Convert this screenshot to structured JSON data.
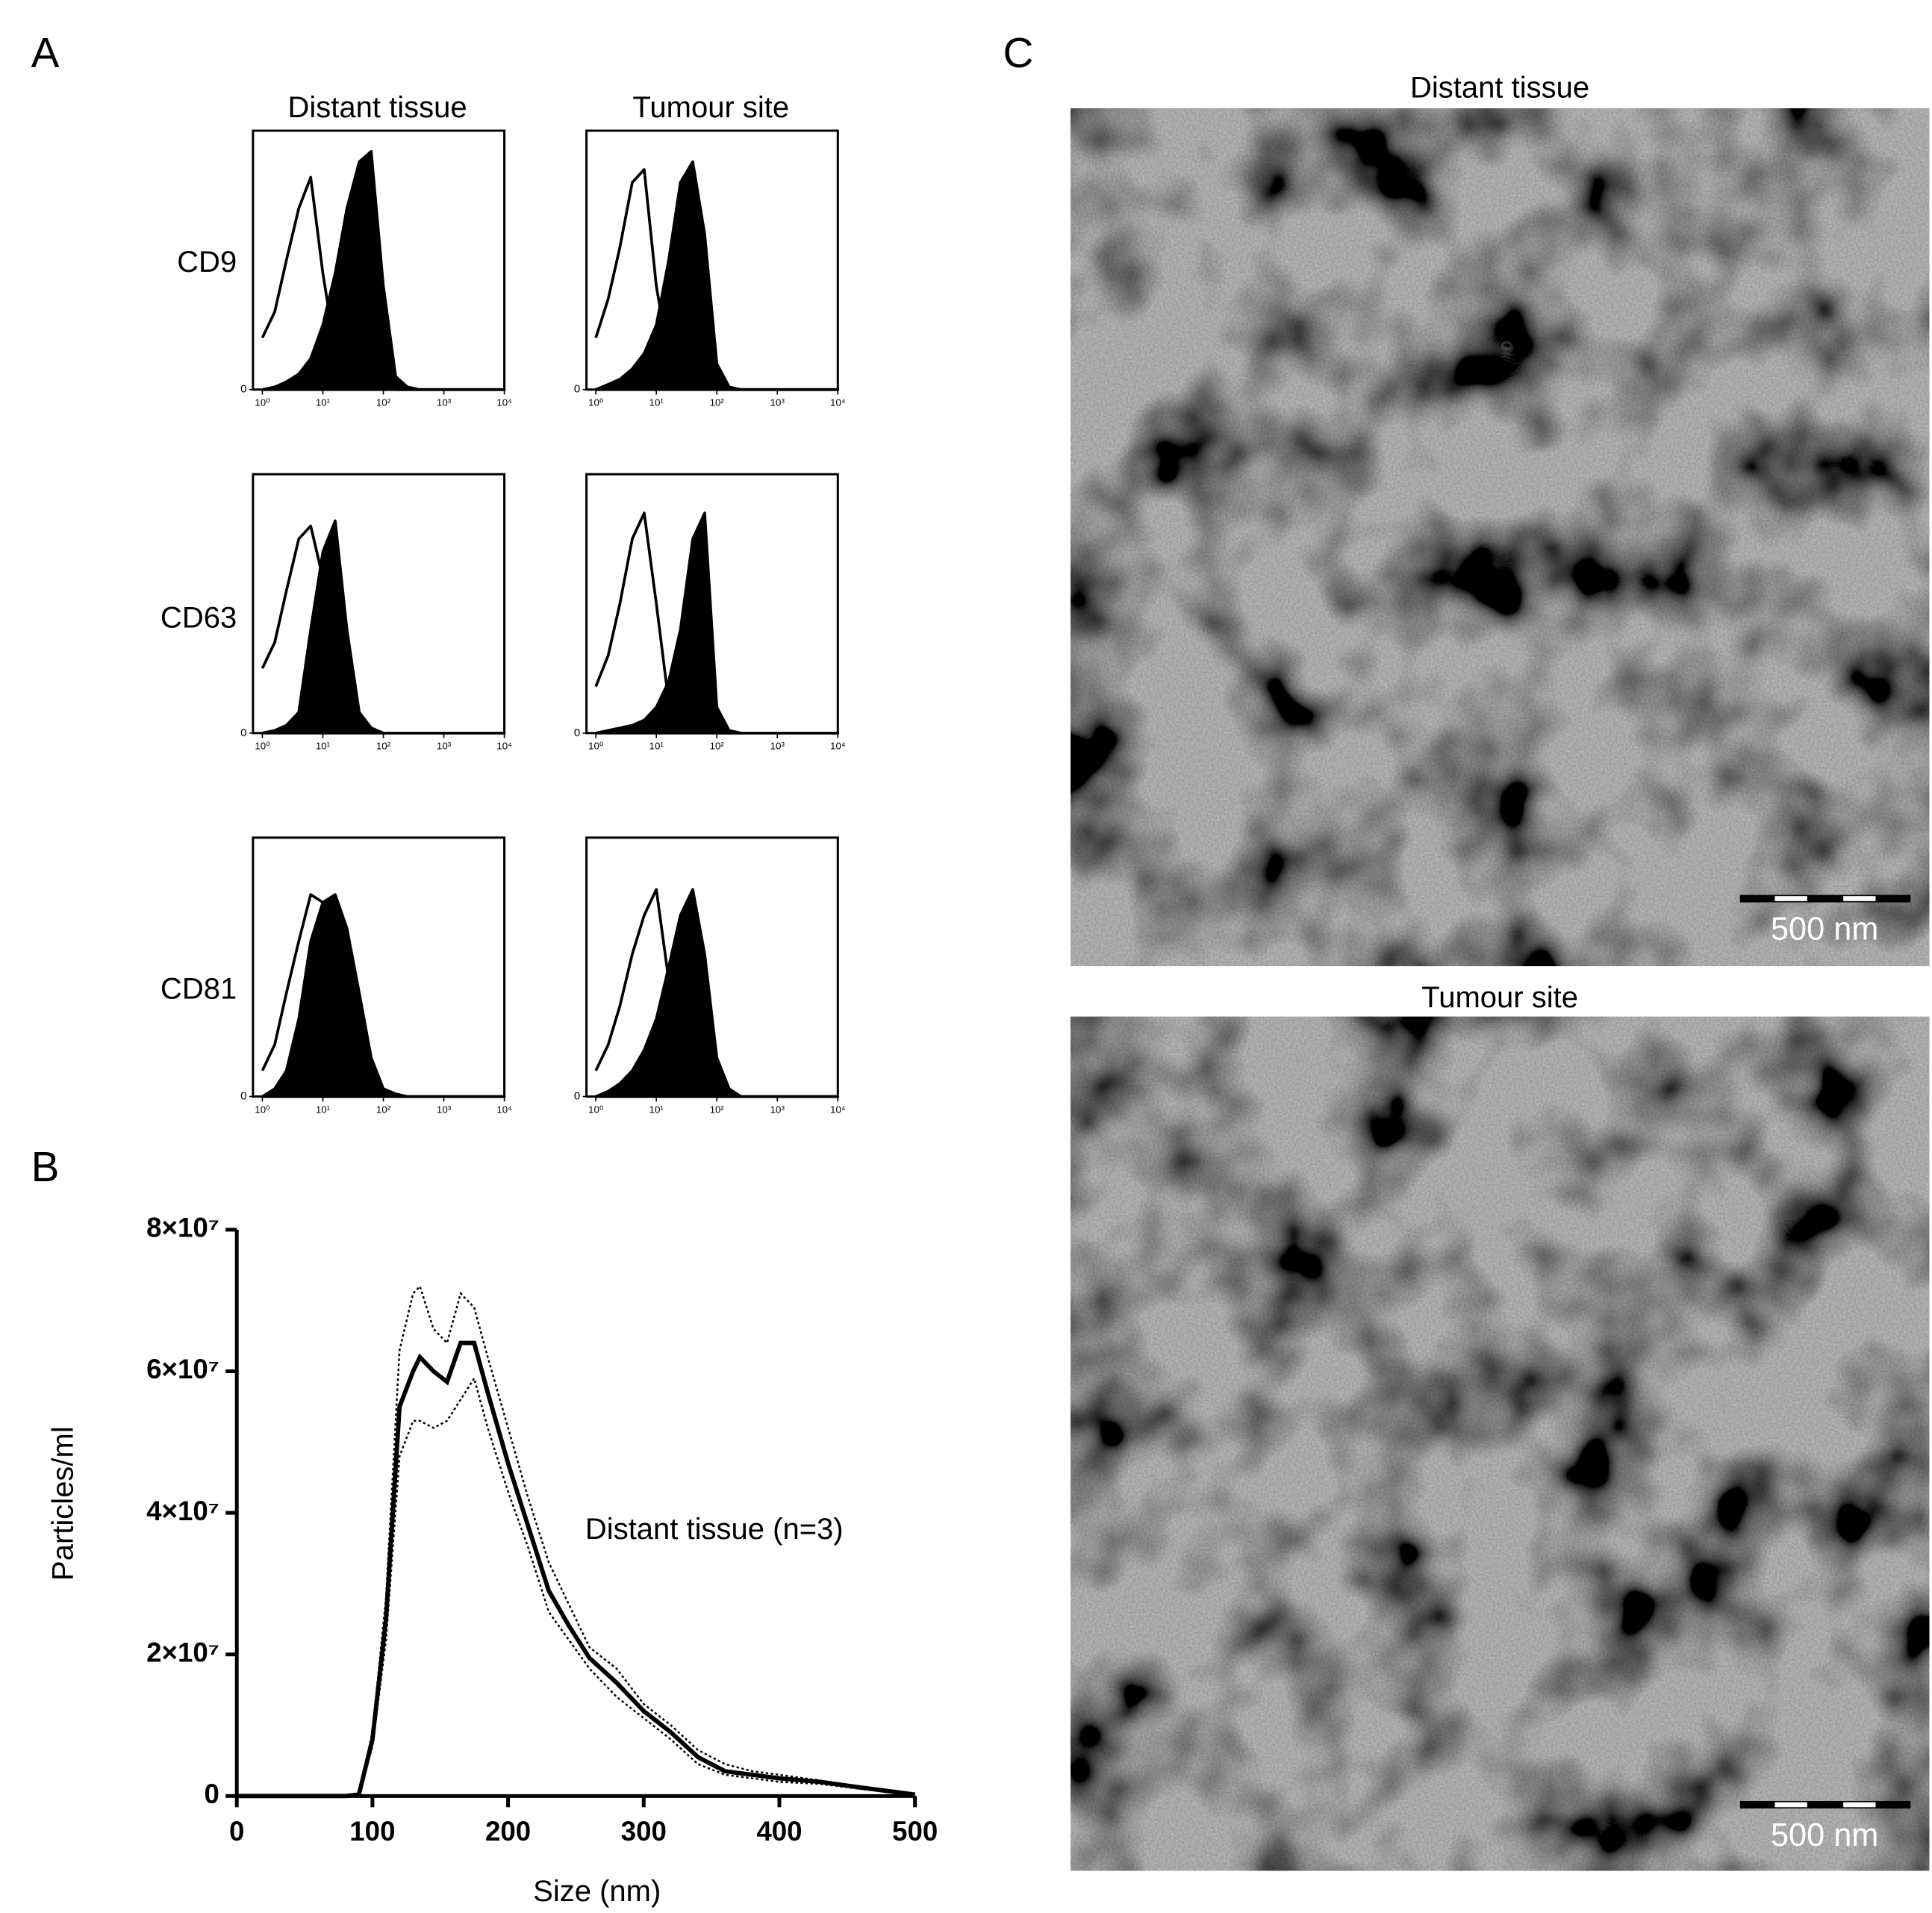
{
  "panel_labels": [
    "A",
    "B",
    "C"
  ],
  "panel_a": {
    "columns": [
      "Distant tissue",
      "Tumour site"
    ],
    "rows": [
      "CD9",
      "CD63",
      "CD81"
    ]
  },
  "chart_data": [
    {
      "type": "area",
      "xscale": "log",
      "xlim": [
        0.7,
        10000
      ],
      "ylim": [
        0,
        100
      ],
      "yticks": [
        0
      ],
      "xticks": [
        {
          "value": 1,
          "label": "10⁰"
        },
        {
          "value": 10,
          "label": "10¹"
        },
        {
          "value": 100,
          "label": "10²"
        },
        {
          "value": 1000,
          "label": "10³"
        },
        {
          "value": 10000,
          "label": "10⁴"
        }
      ],
      "x": [
        1,
        1.6,
        2.5,
        4,
        6.3,
        10,
        16,
        25,
        40,
        63,
        100,
        160,
        250,
        400,
        1000,
        10000
      ],
      "series": [
        {
          "color": "#000000",
          "fill": "none",
          "values": [
            20,
            30,
            50,
            70,
            82,
            45,
            15,
            8,
            4,
            2,
            1,
            0,
            0,
            0,
            0,
            0
          ]
        },
        {
          "color": "#000000",
          "fill": "#000000",
          "values": [
            0,
            1,
            3,
            6,
            12,
            25,
            45,
            70,
            88,
            92,
            40,
            5,
            1,
            0,
            0,
            0
          ]
        }
      ]
    },
    {
      "type": "area",
      "xscale": "log",
      "xlim": [
        0.7,
        10000
      ],
      "ylim": [
        0,
        100
      ],
      "yticks": [
        0
      ],
      "xticks": [
        {
          "value": 1,
          "label": "10⁰"
        },
        {
          "value": 10,
          "label": "10¹"
        },
        {
          "value": 100,
          "label": "10²"
        },
        {
          "value": 1000,
          "label": "10³"
        },
        {
          "value": 10000,
          "label": "10⁴"
        }
      ],
      "x": [
        1,
        1.6,
        2.5,
        4,
        6.3,
        10,
        16,
        25,
        40,
        63,
        100,
        160,
        250,
        400,
        1000,
        10000
      ],
      "series": [
        {
          "color": "#000000",
          "fill": "none",
          "values": [
            20,
            35,
            55,
            80,
            85,
            40,
            12,
            6,
            3,
            1,
            0,
            0,
            0,
            0,
            0,
            0
          ]
        },
        {
          "color": "#000000",
          "fill": "#000000",
          "values": [
            0,
            2,
            4,
            8,
            14,
            25,
            50,
            80,
            88,
            60,
            10,
            1,
            0,
            0,
            0,
            0
          ]
        }
      ]
    },
    {
      "type": "area",
      "xscale": "log",
      "xlim": [
        0.7,
        10000
      ],
      "ylim": [
        0,
        100
      ],
      "yticks": [
        0
      ],
      "xticks": [
        {
          "value": 1,
          "label": "10⁰"
        },
        {
          "value": 10,
          "label": "10¹"
        },
        {
          "value": 100,
          "label": "10²"
        },
        {
          "value": 1000,
          "label": "10³"
        },
        {
          "value": 10000,
          "label": "10⁴"
        }
      ],
      "x": [
        1,
        1.6,
        2.5,
        4,
        6.3,
        10,
        16,
        25,
        40,
        63,
        100,
        160,
        250,
        400,
        1000,
        10000
      ],
      "series": [
        {
          "color": "#000000",
          "fill": "none",
          "values": [
            25,
            35,
            55,
            75,
            80,
            60,
            20,
            6,
            2,
            1,
            0,
            0,
            0,
            0,
            0,
            0
          ]
        },
        {
          "color": "#000000",
          "fill": "#000000",
          "values": [
            0,
            1,
            3,
            8,
            40,
            70,
            82,
            40,
            8,
            2,
            0,
            0,
            0,
            0,
            0,
            0
          ]
        }
      ]
    },
    {
      "type": "area",
      "xscale": "log",
      "xlim": [
        0.7,
        10000
      ],
      "ylim": [
        0,
        100
      ],
      "yticks": [
        0
      ],
      "xticks": [
        {
          "value": 1,
          "label": "10⁰"
        },
        {
          "value": 10,
          "label": "10¹"
        },
        {
          "value": 100,
          "label": "10²"
        },
        {
          "value": 1000,
          "label": "10³"
        },
        {
          "value": 10000,
          "label": "10⁴"
        }
      ],
      "x": [
        1,
        1.6,
        2.5,
        4,
        6.3,
        10,
        16,
        25,
        40,
        63,
        100,
        160,
        250,
        400,
        1000,
        10000
      ],
      "series": [
        {
          "color": "#000000",
          "fill": "none",
          "values": [
            18,
            30,
            50,
            75,
            85,
            50,
            12,
            4,
            2,
            1,
            0,
            0,
            0,
            0,
            0,
            0
          ]
        },
        {
          "color": "#000000",
          "fill": "#000000",
          "values": [
            0,
            1,
            2,
            3,
            5,
            10,
            20,
            40,
            75,
            85,
            10,
            1,
            0,
            0,
            0,
            0
          ]
        }
      ]
    },
    {
      "type": "area",
      "xscale": "log",
      "xlim": [
        0.7,
        10000
      ],
      "ylim": [
        0,
        100
      ],
      "yticks": [
        0
      ],
      "xticks": [
        {
          "value": 1,
          "label": "10⁰"
        },
        {
          "value": 10,
          "label": "10¹"
        },
        {
          "value": 100,
          "label": "10²"
        },
        {
          "value": 1000,
          "label": "10³"
        },
        {
          "value": 10000,
          "label": "10⁴"
        }
      ],
      "x": [
        1,
        1.6,
        2.5,
        4,
        6.3,
        10,
        16,
        25,
        40,
        63,
        100,
        160,
        250,
        400,
        1000,
        10000
      ],
      "series": [
        {
          "color": "#000000",
          "fill": "none",
          "values": [
            10,
            20,
            40,
            60,
            78,
            75,
            60,
            30,
            10,
            3,
            1,
            0,
            0,
            0,
            0,
            0
          ]
        },
        {
          "color": "#000000",
          "fill": "#000000",
          "values": [
            0,
            3,
            10,
            30,
            60,
            75,
            78,
            65,
            40,
            15,
            3,
            1,
            0,
            0,
            0,
            0
          ]
        }
      ]
    },
    {
      "type": "area",
      "xscale": "log",
      "xlim": [
        0.7,
        10000
      ],
      "ylim": [
        0,
        100
      ],
      "yticks": [
        0
      ],
      "xticks": [
        {
          "value": 1,
          "label": "10⁰"
        },
        {
          "value": 10,
          "label": "10¹"
        },
        {
          "value": 100,
          "label": "10²"
        },
        {
          "value": 1000,
          "label": "10³"
        },
        {
          "value": 10000,
          "label": "10⁴"
        }
      ],
      "x": [
        1,
        1.6,
        2.5,
        4,
        6.3,
        10,
        16,
        25,
        40,
        63,
        100,
        160,
        250,
        400,
        1000,
        10000
      ],
      "series": [
        {
          "color": "#000000",
          "fill": "none",
          "values": [
            10,
            20,
            35,
            55,
            70,
            80,
            45,
            12,
            4,
            1,
            0,
            0,
            0,
            0,
            0,
            0
          ]
        },
        {
          "color": "#000000",
          "fill": "#000000",
          "values": [
            0,
            2,
            5,
            10,
            18,
            30,
            50,
            70,
            80,
            55,
            15,
            3,
            0,
            0,
            0,
            0
          ]
        }
      ]
    },
    {
      "type": "line",
      "x_label": "Size (nm)",
      "y_label": "Particles/ml",
      "annotation": "Distant tissue (n=3)",
      "xlim": [
        0,
        500
      ],
      "xticks": [
        0,
        100,
        200,
        300,
        400,
        500
      ],
      "ylim": [
        0,
        80000000
      ],
      "yticks": [
        0,
        {
          "value": 20000000,
          "label": "2×10⁷"
        },
        {
          "value": 40000000,
          "label": "4×10⁷"
        },
        {
          "value": 60000000,
          "label": "6×10⁷"
        },
        {
          "value": 80000000,
          "label": "8×10⁷"
        }
      ],
      "x": [
        0,
        80,
        90,
        100,
        110,
        120,
        130,
        135,
        145,
        155,
        165,
        175,
        185,
        200,
        215,
        230,
        245,
        260,
        280,
        300,
        320,
        340,
        360,
        380,
        400,
        430,
        460,
        500
      ],
      "series": [
        {
          "color": "#000000",
          "style": "solid",
          "values": [
            0,
            0,
            200000,
            8000000,
            25000000,
            55000000,
            60000000,
            62000000,
            60000000,
            58500000,
            64000000,
            64000000,
            57000000,
            47000000,
            38000000,
            29000000,
            24000000,
            19500000,
            16000000,
            12000000,
            9000000,
            5500000,
            3500000,
            3000000,
            2500000,
            2000000,
            1200000,
            200000
          ]
        },
        {
          "color": "#000000",
          "style": "dotted",
          "values": [
            0,
            0,
            300000,
            9000000,
            28000000,
            63000000,
            71000000,
            72000000,
            66000000,
            64000000,
            71000000,
            69000000,
            62000000,
            52000000,
            42000000,
            33000000,
            27000000,
            21000000,
            18000000,
            13000000,
            10000000,
            6500000,
            4500000,
            3500000,
            3000000,
            2200000,
            1300000,
            300000
          ]
        },
        {
          "color": "#000000",
          "style": "dotted",
          "values": [
            0,
            0,
            100000,
            7000000,
            22000000,
            48000000,
            53000000,
            53000000,
            52000000,
            53000000,
            56000000,
            59000000,
            52000000,
            43000000,
            35000000,
            26000000,
            22000000,
            18000000,
            14000000,
            11000000,
            8000000,
            4500000,
            3000000,
            2500000,
            2000000,
            1700000,
            1000000,
            100000
          ]
        }
      ]
    }
  ],
  "micrographs": [
    {
      "title": "Distant tissue",
      "scale_bar": "500 nm"
    },
    {
      "title": "Tumour site",
      "scale_bar": "500 nm"
    }
  ]
}
